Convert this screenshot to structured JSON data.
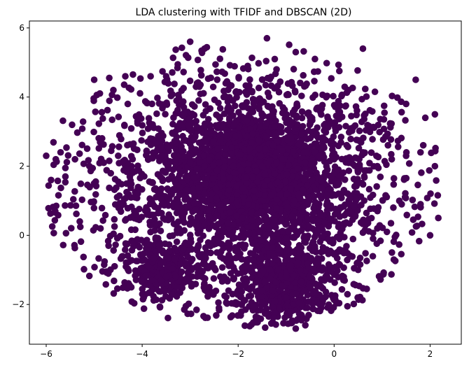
{
  "chart_data": {
    "type": "scatter",
    "title": "LDA clustering with TFIDF and DBSCAN (2D)",
    "xlabel": "",
    "ylabel": "",
    "xlim": [
      -6.35,
      2.65
    ],
    "ylim": [
      -3.15,
      6.2
    ],
    "xticks": [
      -6,
      -4,
      -2,
      0,
      2
    ],
    "yticks": [
      -2,
      0,
      2,
      4,
      6
    ],
    "xtick_labels": [
      "−6",
      "−4",
      "−2",
      "0",
      "2"
    ],
    "ytick_labels": [
      "−2",
      "0",
      "2",
      "4",
      "6"
    ],
    "grid": false,
    "legend": "none",
    "point_color": "#440154",
    "approximate_point_count": 4500,
    "series": [
      {
        "color": "#440154",
        "x": [
          -6.0,
          -5.7,
          -5.4,
          -5.1,
          -4.8,
          -4.5,
          -4.2,
          -3.9,
          -3.6,
          -3.3,
          -3.0,
          -2.7,
          -2.4,
          -2.1,
          -1.8,
          -1.5,
          -1.2,
          -0.9,
          -0.6,
          -0.3,
          0.0,
          0.3,
          0.6,
          0.9,
          1.2,
          1.5,
          1.8,
          2.1,
          -3.0,
          -2.7,
          -1.4,
          -0.4,
          0.6,
          -5.0,
          -4.6,
          -3.5,
          -1.8,
          -1.2,
          -0.8,
          1.7,
          2.1,
          -5.8,
          -5.6,
          -4.3,
          -3.9,
          -2.3,
          0.3,
          1.5,
          1.9,
          -5.3,
          -4.7,
          -3.3,
          -2.8,
          0.1,
          0.9,
          1.8,
          -4.4,
          -3.8,
          -3.1,
          -2.6,
          -1.0,
          -0.2,
          0.5,
          1.1,
          2.0,
          -3.6,
          -3.5,
          -2.4,
          -1.6,
          -0.9,
          -0.5,
          -0.3,
          0.2,
          -2.2,
          -1.6,
          -1.2,
          -0.8,
          -0.6,
          -0.9,
          -1.5
        ],
        "y": [
          2.3,
          2.4,
          2.2,
          2.0,
          2.1,
          2.3,
          2.2,
          2.4,
          2.3,
          2.2,
          2.1,
          2.0,
          2.1,
          2.0,
          1.9,
          2.0,
          2.1,
          2.2,
          2.1,
          2.3,
          2.2,
          2.1,
          2.4,
          2.0,
          2.2,
          2.3,
          2.4,
          2.0,
          5.6,
          5.4,
          5.7,
          5.1,
          5.4,
          4.5,
          4.2,
          4.6,
          4.9,
          4.8,
          5.3,
          4.5,
          3.5,
          2.2,
          1.7,
          3.8,
          0.6,
          4.0,
          4.2,
          3.8,
          3.4,
          0.4,
          -0.3,
          -1.2,
          -1.0,
          0.3,
          0.2,
          0.9,
          0.9,
          -1.3,
          -0.8,
          -1.5,
          -1.2,
          -1.8,
          -1.0,
          0.1,
          0.0,
          -1.3,
          -1.2,
          -2.1,
          -2.5,
          -2.2,
          -1.5,
          -2.0,
          -1.2,
          -1.6,
          -0.4,
          -0.7,
          -2.7,
          -2.6,
          -1.0,
          -1.6
        ]
      }
    ]
  }
}
